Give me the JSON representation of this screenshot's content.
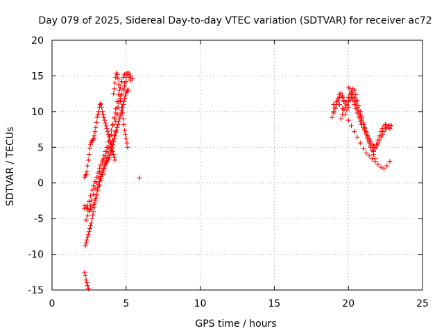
{
  "chart_data": {
    "type": "scatter",
    "title": "Day 079 of 2025, Sidereal Day-to-day VTEC variation (SDTVAR) for receiver ac72",
    "xlabel": "GPS time / hours",
    "ylabel": "SDTVAR / TECUs",
    "xlim": [
      0,
      25
    ],
    "ylim": [
      -15,
      20
    ],
    "xticks": [
      0,
      5,
      10,
      15,
      20,
      25
    ],
    "yticks": [
      -15,
      -10,
      -5,
      0,
      5,
      10,
      15,
      20
    ],
    "xtick_labels": [
      "0",
      "5",
      "10",
      "15",
      "20",
      "25"
    ],
    "ytick_labels": [
      "-15",
      "-10",
      "-5",
      "0",
      "5",
      "10",
      "15",
      "20"
    ],
    "grid": true,
    "marker": "plus",
    "color": "#ff0000",
    "series": [
      {
        "name": "SDTVAR",
        "x": [
          2.2,
          2.25,
          2.3,
          2.35,
          2.4,
          2.45,
          2.25,
          2.3,
          2.35,
          2.4,
          2.45,
          2.5,
          2.55,
          2.6,
          2.65,
          2.7,
          2.75,
          2.8,
          2.85,
          2.9,
          2.95,
          3.0,
          3.05,
          3.1,
          3.15,
          3.2,
          3.25,
          3.3,
          3.35,
          3.4,
          3.45,
          3.5,
          3.55,
          3.6,
          3.65,
          3.7,
          3.75,
          3.8,
          3.85,
          3.9,
          3.95,
          4.0,
          4.05,
          4.1,
          4.15,
          4.2,
          4.25,
          4.3,
          4.35,
          4.4,
          4.45,
          4.5,
          4.55,
          4.6,
          4.65,
          4.7,
          4.75,
          4.8,
          4.85,
          4.9,
          4.95,
          5.0,
          5.05,
          5.1,
          5.15,
          2.2,
          2.3,
          2.4,
          2.5,
          2.6,
          2.7,
          2.8,
          2.9,
          3.0,
          3.1,
          3.2,
          3.3,
          3.4,
          3.5,
          3.6,
          3.7,
          3.8,
          3.9,
          4.0,
          4.1,
          4.2,
          4.3,
          2.2,
          2.25,
          2.3,
          2.35,
          2.4,
          2.45,
          2.5,
          2.55,
          2.6,
          2.65,
          2.7,
          2.75,
          2.8,
          2.85,
          2.9,
          2.95,
          3.0,
          3.05,
          3.1,
          3.15,
          3.2,
          3.25,
          3.3,
          3.35,
          3.4,
          3.45,
          3.5,
          3.55,
          3.6,
          3.65,
          3.7,
          3.75,
          3.8,
          3.85,
          3.9,
          3.95,
          4.0,
          4.05,
          4.1,
          4.15,
          4.2,
          4.25,
          2.2,
          2.3,
          2.4,
          2.5,
          2.6,
          2.7,
          2.8,
          2.9,
          3.0,
          3.1,
          3.2,
          3.3,
          3.4,
          3.5,
          3.6,
          3.7,
          3.8,
          3.9,
          4.0,
          4.1,
          4.2,
          4.3,
          4.4,
          4.5,
          4.6,
          4.7,
          4.8,
          4.9,
          5.0,
          5.1,
          5.2,
          5.3,
          2.3,
          2.4,
          2.5,
          2.6,
          2.7,
          2.8,
          2.9,
          3.0,
          3.1,
          3.2,
          3.3,
          3.4,
          3.5,
          3.6,
          3.7,
          3.8,
          3.9,
          4.0,
          4.1,
          4.2,
          4.3,
          4.4,
          4.5,
          4.6,
          4.7,
          4.8,
          4.9,
          5.0,
          4.15,
          4.2,
          4.25,
          4.3,
          4.35,
          4.4,
          4.45,
          4.5,
          4.55,
          4.6,
          4.65,
          4.7,
          4.75,
          4.8,
          4.85,
          4.9,
          4.95,
          5.0,
          5.05,
          5.1,
          4.3,
          4.4,
          4.5,
          4.6,
          4.7,
          4.8,
          4.9,
          5.0,
          5.1,
          5.2,
          5.3,
          5.4,
          5.9,
          18.9,
          19.0,
          19.1,
          19.2,
          19.3,
          19.4,
          19.5,
          19.6,
          19.7,
          19.8,
          19.9,
          20.0,
          20.1,
          20.2,
          20.3,
          20.4,
          20.5,
          20.6,
          20.7,
          20.8,
          20.9,
          21.0,
          21.1,
          21.2,
          21.3,
          21.4,
          21.5,
          21.6,
          21.7,
          21.8,
          21.9,
          22.0,
          22.1,
          22.2,
          22.3,
          22.4,
          22.5,
          22.6,
          22.7,
          22.8,
          22.9,
          19.0,
          19.1,
          19.2,
          19.3,
          19.4,
          19.5,
          19.6,
          19.7,
          19.8,
          19.9,
          20.0,
          20.1,
          20.2,
          20.3,
          20.4,
          20.5,
          20.6,
          20.7,
          20.8,
          20.9,
          21.0,
          21.1,
          21.2,
          21.3,
          21.4,
          21.5,
          21.6,
          21.7,
          21.8,
          21.9,
          22.0,
          22.1,
          22.2,
          22.3,
          22.4,
          22.5,
          22.6,
          22.7,
          22.8,
          19.0,
          19.2,
          19.4,
          19.6,
          19.8,
          20.0,
          20.2,
          20.4,
          20.6,
          20.8,
          21.0,
          21.2,
          21.4,
          21.6,
          21.8,
          22.0,
          22.2,
          22.4,
          22.6,
          22.8,
          20.0,
          20.1,
          20.2,
          20.3,
          20.4,
          20.5,
          20.6,
          20.7,
          20.8,
          20.9,
          21.0,
          21.1,
          21.2,
          21.3,
          21.4,
          21.5,
          21.6,
          21.7,
          21.8,
          19.5,
          19.6,
          19.7,
          19.8,
          19.9,
          20.0,
          20.1,
          20.2,
          20.3,
          20.4,
          20.5,
          20.6,
          20.7,
          20.8,
          20.9,
          21.0,
          21.1,
          21.2,
          21.3,
          21.4
        ],
        "y": [
          -12.5,
          -13.0,
          -13.6,
          -14.0,
          -14.4,
          -14.8,
          -8.8,
          -8.4,
          -8.0,
          -7.6,
          -7.2,
          -6.8,
          -6.4,
          -6.0,
          -5.6,
          -5.0,
          -4.5,
          -4.0,
          -3.4,
          -2.8,
          -2.2,
          -1.6,
          -1.0,
          -0.6,
          -0.2,
          0.2,
          0.6,
          0.9,
          1.2,
          1.5,
          1.8,
          2.1,
          2.4,
          2.6,
          2.8,
          3.0,
          3.2,
          3.4,
          3.6,
          3.9,
          4.2,
          4.6,
          5.0,
          5.4,
          5.8,
          6.2,
          6.6,
          7.0,
          7.4,
          7.8,
          8.2,
          8.6,
          9.0,
          9.4,
          9.8,
          10.2,
          10.6,
          11.0,
          11.4,
          11.8,
          12.2,
          12.6,
          12.8,
          13.0,
          13.0,
          -3.2,
          -3.4,
          -3.6,
          -3.8,
          -3.7,
          -3.5,
          -3.0,
          -2.4,
          -1.8,
          -1.0,
          -0.4,
          0.4,
          1.2,
          2.0,
          2.8,
          3.6,
          4.2,
          4.8,
          5.4,
          6.0,
          6.6,
          7.2,
          0.8,
          1.0,
          1.2,
          1.6,
          2.4,
          3.2,
          4.0,
          4.8,
          5.4,
          5.7,
          5.9,
          6.0,
          6.2,
          6.6,
          7.2,
          7.8,
          8.5,
          9.2,
          9.6,
          10.0,
          10.6,
          11.0,
          11.1,
          10.6,
          10.0,
          9.6,
          9.2,
          8.8,
          8.4,
          8.0,
          7.6,
          7.2,
          6.8,
          6.4,
          6.0,
          5.6,
          5.2,
          4.8,
          4.4,
          4.0,
          3.6,
          3.2,
          -3.6,
          -3.4,
          -3.2,
          -2.6,
          -1.8,
          -1.0,
          -0.4,
          0.2,
          0.8,
          1.4,
          2.0,
          2.6,
          3.0,
          3.4,
          3.8,
          4.4,
          5.0,
          5.8,
          6.8,
          8.0,
          9.2,
          10.4,
          11.4,
          12.4,
          13.4,
          14.2,
          14.8,
          15.2,
          15.4,
          15.2,
          14.8,
          14.4,
          -5.2,
          -4.6,
          -4.0,
          -3.2,
          -2.4,
          -1.6,
          -0.8,
          0.0,
          0.8,
          1.6,
          2.4,
          3.2,
          3.8,
          4.4,
          5.0,
          5.8,
          6.6,
          7.4,
          8.2,
          9.0,
          9.8,
          10.6,
          11.2,
          11.8,
          12.4,
          13.0,
          13.6,
          14.2,
          12.5,
          13.2,
          14.0,
          14.8,
          15.4,
          15.2,
          14.6,
          13.8,
          13.0,
          12.2,
          11.4,
          10.6,
          9.8,
          9.0,
          8.2,
          7.4,
          6.8,
          6.2,
          5.6,
          5.0,
          8.6,
          9.6,
          10.6,
          11.6,
          12.4,
          13.2,
          14.0,
          14.8,
          15.4,
          15.4,
          15.0,
          14.6,
          0.7,
          9.2,
          9.8,
          10.4,
          11.0,
          11.6,
          12.0,
          12.2,
          12.0,
          11.6,
          11.2,
          11.0,
          11.4,
          11.8,
          12.0,
          11.6,
          11.0,
          10.4,
          9.8,
          9.2,
          8.6,
          8.2,
          7.8,
          7.4,
          7.0,
          6.6,
          6.2,
          5.8,
          5.4,
          5.2,
          5.0,
          5.2,
          5.6,
          6.0,
          6.4,
          6.8,
          7.2,
          7.6,
          7.8,
          8.0,
          8.1,
          8.0,
          10.0,
          10.6,
          11.2,
          11.8,
          12.4,
          12.6,
          12.2,
          11.4,
          10.6,
          10.2,
          10.6,
          11.6,
          12.6,
          13.2,
          13.0,
          12.4,
          11.6,
          10.8,
          10.0,
          9.2,
          8.4,
          7.6,
          6.8,
          6.2,
          5.6,
          5.0,
          4.6,
          4.4,
          4.8,
          5.4,
          6.0,
          6.6,
          7.2,
          7.6,
          8.0,
          8.2,
          8.0,
          7.8,
          7.6,
          11.0,
          11.4,
          11.0,
          10.4,
          9.6,
          8.8,
          8.0,
          7.2,
          6.4,
          5.6,
          4.8,
          4.2,
          3.8,
          3.4,
          3.0,
          2.6,
          2.2,
          2.0,
          2.4,
          3.0,
          13.4,
          13.2,
          12.8,
          12.4,
          11.8,
          11.2,
          10.6,
          10.0,
          9.4,
          8.8,
          8.2,
          7.6,
          7.0,
          6.4,
          5.8,
          5.2,
          4.6,
          4.0,
          3.4,
          9.0,
          9.6,
          10.2,
          10.8,
          11.4,
          12.0,
          12.4,
          12.6,
          12.4,
          12.0,
          11.4,
          10.8,
          10.2,
          9.6,
          9.0,
          8.4,
          7.8,
          7.2,
          6.6,
          6.0
        ]
      }
    ]
  }
}
